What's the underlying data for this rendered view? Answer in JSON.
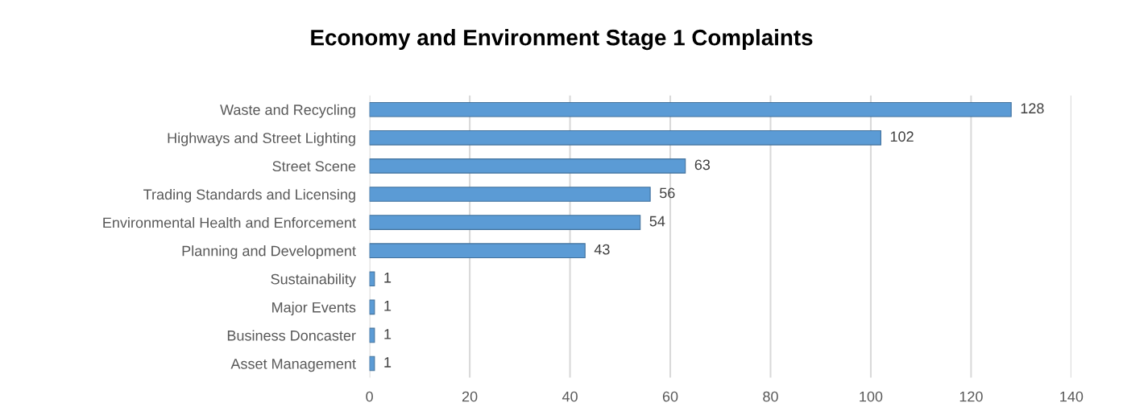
{
  "chart_data": {
    "type": "bar",
    "orientation": "horizontal",
    "title": "Economy and Environment Stage 1 Complaints",
    "categories": [
      "Waste and Recycling",
      "Highways and Street Lighting",
      "Street Scene",
      "Trading Standards and Licensing",
      "Environmental Health and Enforcement",
      "Planning and Development",
      "Sustainability",
      "Major Events",
      "Business Doncaster",
      "Asset Management"
    ],
    "values": [
      128,
      102,
      63,
      56,
      54,
      43,
      1,
      1,
      1,
      1
    ],
    "color": "#5b9bd5",
    "xlim": [
      0,
      140
    ],
    "xticks": [
      0,
      20,
      40,
      60,
      80,
      100,
      120,
      140
    ],
    "grid": "x",
    "data_labels": true
  }
}
